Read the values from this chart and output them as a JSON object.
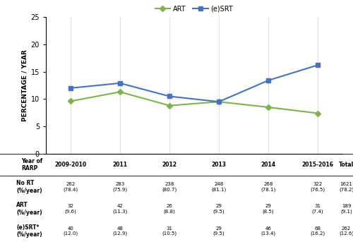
{
  "x_labels": [
    "2009-2010",
    "2011",
    "2012",
    "2013",
    "2014",
    "2015-2016"
  ],
  "x_positions": [
    0,
    1,
    2,
    3,
    4,
    5
  ],
  "art_values": [
    9.6,
    11.3,
    8.8,
    9.5,
    8.5,
    7.4
  ],
  "esrt_values": [
    12.0,
    12.9,
    10.5,
    9.5,
    13.4,
    16.2
  ],
  "art_color": "#7ab648",
  "esrt_color": "#4472c4",
  "ylabel": "PERCENTAGE / YEAR",
  "ylim": [
    0,
    25
  ],
  "yticks": [
    0,
    5,
    10,
    15,
    20,
    25
  ],
  "legend_art": "ART",
  "legend_esrt": "(e)SRT",
  "col_headers": [
    "Year of\nRARP",
    "2009-2010",
    "2011",
    "2012",
    "2013",
    "2014",
    "2015-2016",
    "Total"
  ],
  "row_labels": [
    "No RT\n(%/year)",
    "ART\n(%/year)",
    "(e)SRT*\n(%/year)"
  ],
  "table_data": [
    [
      "262\n(78.4)",
      "283\n(75.9)",
      "238\n(80.7)",
      "248\n(81.1)",
      "268\n(78.1)",
      "322\n(76.5)",
      "1621\n(78.2)"
    ],
    [
      "32\n(9.6)",
      "42\n(11.3)",
      "26\n(8.8)",
      "29\n(9.5)",
      "29\n(8.5)",
      "31\n(7.4)",
      "189\n(9.1)"
    ],
    [
      "40\n(12.0)",
      "48\n(12.9)",
      "31\n(10.5)",
      "29\n(9.5)",
      "46\n(13.4)",
      "68\n(16.2)",
      "262\n(12.6)"
    ]
  ]
}
